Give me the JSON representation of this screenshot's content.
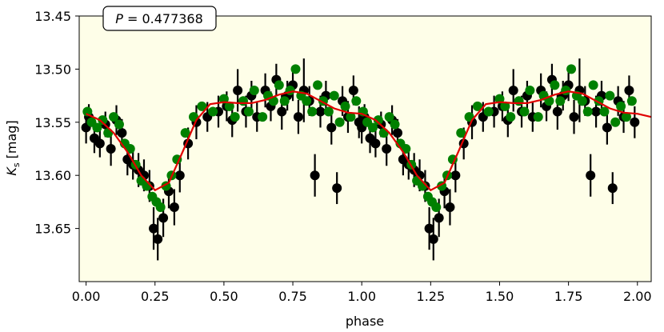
{
  "chart_data": {
    "type": "scatter",
    "title": "",
    "xlabel": "phase",
    "ylabel_main": "K",
    "ylabel_sub": "s",
    "ylabel_unit": "[mag]",
    "annotation": {
      "label": "P",
      "equals": " = ",
      "value": "0.477368"
    },
    "xlim": [
      -0.025,
      2.05
    ],
    "ylim": [
      13.7,
      13.45
    ],
    "y_inverted": true,
    "x_ticks": [
      0.0,
      0.25,
      0.5,
      0.75,
      1.0,
      1.25,
      1.5,
      1.75,
      2.0
    ],
    "x_tick_labels": [
      "0.00",
      "0.25",
      "0.50",
      "0.75",
      "1.00",
      "1.25",
      "1.50",
      "1.75",
      "2.00"
    ],
    "y_ticks": [
      13.45,
      13.5,
      13.55,
      13.6,
      13.65
    ],
    "y_tick_labels": [
      "13.45",
      "13.50",
      "13.55",
      "13.60",
      "13.65"
    ],
    "grid": false,
    "colors": {
      "background": "#fefee8",
      "model": "#e00000",
      "primary": "#000000",
      "secondary": "#008000"
    },
    "model_curve": {
      "x": [
        0.0,
        0.05,
        0.1,
        0.15,
        0.2,
        0.25,
        0.3,
        0.35,
        0.4,
        0.45,
        0.5,
        0.55,
        0.6,
        0.65,
        0.7,
        0.75,
        0.8,
        0.85,
        0.9,
        0.95,
        1.0,
        1.05,
        1.1,
        1.15,
        1.2,
        1.25,
        1.3,
        1.35,
        1.4,
        1.45,
        1.5,
        1.55,
        1.6,
        1.65,
        1.7,
        1.75,
        1.8,
        1.85,
        1.9,
        1.95,
        2.0,
        2.05
      ],
      "y": [
        13.542,
        13.548,
        13.56,
        13.578,
        13.6,
        13.614,
        13.607,
        13.578,
        13.548,
        13.533,
        13.531,
        13.532,
        13.532,
        13.529,
        13.524,
        13.521,
        13.523,
        13.53,
        13.537,
        13.541,
        13.542,
        13.548,
        13.56,
        13.578,
        13.6,
        13.614,
        13.607,
        13.578,
        13.548,
        13.533,
        13.531,
        13.532,
        13.532,
        13.529,
        13.524,
        13.521,
        13.523,
        13.53,
        13.537,
        13.541,
        13.542,
        13.545
      ]
    },
    "series": [
      {
        "color": "black",
        "x": [
          0.0,
          0.01,
          0.03,
          0.05,
          0.07,
          0.09,
          0.11,
          0.13,
          0.15,
          0.17,
          0.19,
          0.21,
          0.23,
          0.245,
          0.26,
          0.28,
          0.3,
          0.32,
          0.34,
          0.37,
          0.4,
          0.44,
          0.48,
          0.51,
          0.53,
          0.55,
          0.58,
          0.6,
          0.62,
          0.65,
          0.67,
          0.69,
          0.71,
          0.73,
          0.75,
          0.77,
          0.79,
          0.81,
          0.83,
          0.85,
          0.87,
          0.89,
          0.91,
          0.93,
          0.95,
          0.97,
          0.99
        ],
        "y": [
          13.555,
          13.545,
          13.565,
          13.57,
          13.552,
          13.575,
          13.548,
          13.56,
          13.585,
          13.59,
          13.595,
          13.6,
          13.61,
          13.65,
          13.66,
          13.64,
          13.615,
          13.63,
          13.6,
          13.57,
          13.55,
          13.545,
          13.54,
          13.535,
          13.548,
          13.52,
          13.54,
          13.525,
          13.545,
          13.52,
          13.535,
          13.51,
          13.54,
          13.525,
          13.515,
          13.545,
          13.52,
          13.53,
          13.6,
          13.54,
          13.525,
          13.555,
          13.612,
          13.53,
          13.545,
          13.52,
          13.55
        ],
        "err": [
          0.015,
          0.012,
          0.014,
          0.013,
          0.012,
          0.016,
          0.014,
          0.013,
          0.015,
          0.014,
          0.016,
          0.015,
          0.015,
          0.02,
          0.02,
          0.018,
          0.016,
          0.017,
          0.016,
          0.015,
          0.016,
          0.014,
          0.015,
          0.014,
          0.016,
          0.02,
          0.015,
          0.014,
          0.014,
          0.016,
          0.014,
          0.015,
          0.017,
          0.014,
          0.015,
          0.016,
          0.03,
          0.014,
          0.02,
          0.015,
          0.014,
          0.016,
          0.015,
          0.014,
          0.015,
          0.014,
          0.015
        ]
      },
      {
        "color": "green",
        "x": [
          0.005,
          0.02,
          0.04,
          0.06,
          0.08,
          0.1,
          0.12,
          0.14,
          0.16,
          0.18,
          0.2,
          0.22,
          0.24,
          0.255,
          0.27,
          0.29,
          0.31,
          0.33,
          0.36,
          0.39,
          0.42,
          0.46,
          0.5,
          0.52,
          0.54,
          0.57,
          0.59,
          0.61,
          0.64,
          0.66,
          0.68,
          0.7,
          0.72,
          0.74,
          0.76,
          0.78,
          0.8,
          0.82,
          0.84,
          0.86,
          0.88,
          0.9,
          0.92,
          0.94,
          0.96,
          0.98
        ],
        "y": [
          13.54,
          13.55,
          13.555,
          13.548,
          13.56,
          13.545,
          13.552,
          13.57,
          13.575,
          13.59,
          13.605,
          13.61,
          13.62,
          13.625,
          13.63,
          13.61,
          13.6,
          13.585,
          13.56,
          13.545,
          13.535,
          13.54,
          13.528,
          13.535,
          13.545,
          13.53,
          13.54,
          13.52,
          13.545,
          13.525,
          13.53,
          13.515,
          13.53,
          13.52,
          13.5,
          13.525,
          13.53,
          13.54,
          13.515,
          13.53,
          13.54,
          13.525,
          13.55,
          13.535,
          13.545,
          13.53
        ],
        "err": [
          0,
          0,
          0,
          0,
          0,
          0,
          0,
          0,
          0,
          0,
          0,
          0,
          0,
          0,
          0,
          0,
          0,
          0,
          0,
          0,
          0,
          0,
          0,
          0,
          0,
          0,
          0,
          0,
          0,
          0,
          0,
          0,
          0,
          0,
          0,
          0,
          0,
          0,
          0,
          0,
          0,
          0,
          0,
          0,
          0,
          0
        ]
      }
    ],
    "phase_repeat": 1.0
  }
}
